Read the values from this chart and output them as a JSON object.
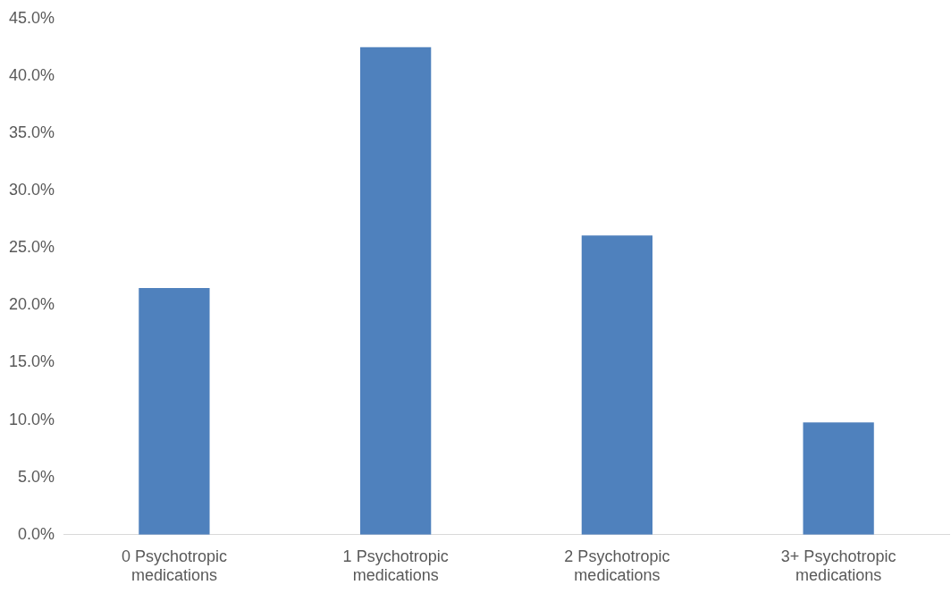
{
  "chart_data": {
    "type": "bar",
    "categories": [
      "0 Psychotropic medications",
      "1 Psychotropic medications",
      "2 Psychotropic medications",
      "3+ Psychotropic medications"
    ],
    "values": [
      21.5,
      42.5,
      26.1,
      9.8
    ],
    "color": "#4f81bd",
    "ylim": [
      0,
      45
    ],
    "yticks": [
      {
        "value": 0,
        "label": "0.0%"
      },
      {
        "value": 5,
        "label": "5.0%"
      },
      {
        "value": 10,
        "label": "10.0%"
      },
      {
        "value": 15,
        "label": "15.0%"
      },
      {
        "value": 20,
        "label": "20.0%"
      },
      {
        "value": 25,
        "label": "25.0%"
      },
      {
        "value": 30,
        "label": "30.0%"
      },
      {
        "value": 35,
        "label": "35.0%"
      },
      {
        "value": 40,
        "label": "40.0%"
      },
      {
        "value": 45,
        "label": "45.0%"
      }
    ],
    "grid": false,
    "legend": false
  }
}
